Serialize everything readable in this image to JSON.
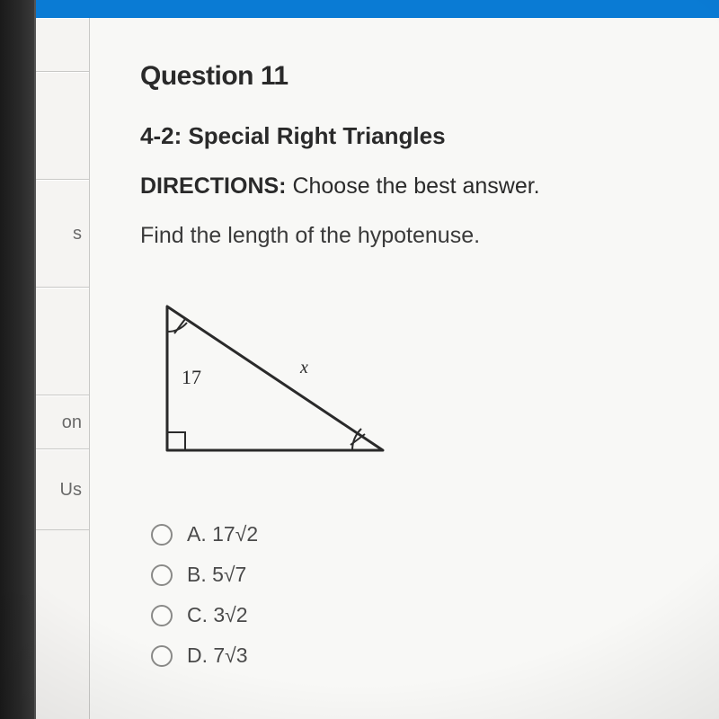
{
  "sidebar": {
    "items": [
      {
        "label": ""
      },
      {
        "label": ""
      },
      {
        "label": "s"
      },
      {
        "label": ""
      },
      {
        "label": "on"
      },
      {
        "label": "Us"
      }
    ]
  },
  "question": {
    "title": "Question 11",
    "section": "4-2: Special Right Triangles",
    "directions_label": "DIRECTIONS:",
    "directions_text": " Choose the best answer.",
    "prompt": "Find the length of the hypotenuse."
  },
  "figure": {
    "type": "right-triangle-45-45-90",
    "leg_label": "17",
    "hypotenuse_label": "x",
    "stroke": "#2a2a2a",
    "stroke_width": 3,
    "label_color": "#2a2a2a",
    "label_fontsize": 22,
    "vertices": {
      "A": [
        20,
        20
      ],
      "B": [
        20,
        180
      ],
      "C": [
        260,
        180
      ]
    },
    "right_angle_size": 20,
    "tick_len": 12
  },
  "choices": [
    {
      "key": "A",
      "text": "A. 17√2"
    },
    {
      "key": "B",
      "text": "B. 5√7"
    },
    {
      "key": "C",
      "text": "C. 3√2"
    },
    {
      "key": "D",
      "text": "D. 7√3"
    }
  ]
}
